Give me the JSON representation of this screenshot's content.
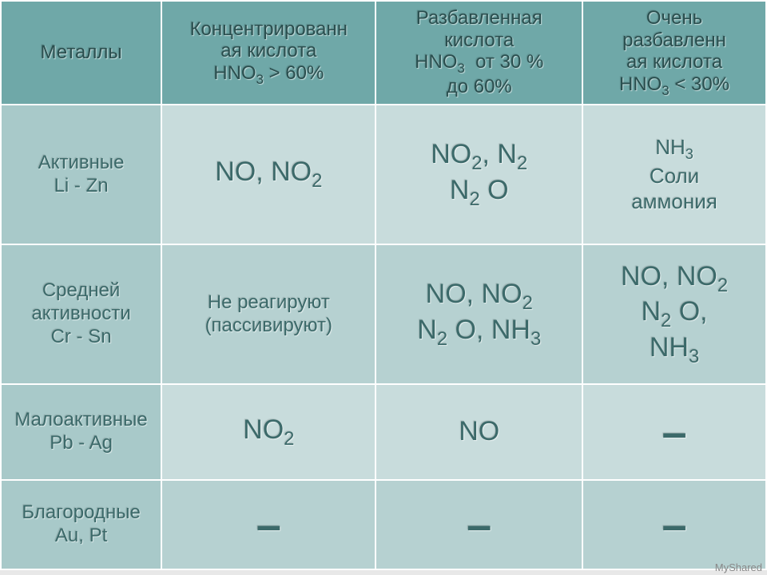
{
  "colors": {
    "header_bg": "#6fa8a8",
    "row_label_bg": "#a8c9c9",
    "cell_bg_light": "#c8dcdc",
    "cell_bg_mid": "#b6d1d1",
    "text": "#3c6a6a",
    "border": "#ffffff",
    "page_bg": "#e8e8e8"
  },
  "typography": {
    "font_family": "Trebuchet MS",
    "header_fontsize_pt": 18,
    "cell_big_fontsize_pt": 26,
    "cell_small_fontsize_pt": 18
  },
  "column_widths_pct": [
    21,
    28,
    27,
    24
  ],
  "headers": {
    "c0": "Металлы",
    "c1": "Концентрированная кислота\nHNO₃ > 60%",
    "c2": "Разбавленная кислота\nHNO₃  от 30 % до 60%",
    "c3": "Очень разбавленная кислота\nHNO₃ < 30%"
  },
  "rows": [
    {
      "label": "Активные\nLi - Zn",
      "c1": "NO, NO₂",
      "c2": "NO₂, N₂\nN₂ O",
      "c3": "NH₃\nСоли аммония"
    },
    {
      "label": "Средней активности\nCr - Sn",
      "c1": "Не реагируют (пассивируют)",
      "c2": "NO, NO₂\nN₂ O, NH₃",
      "c3": "NO, NO₂\nN₂ O, NH₃"
    },
    {
      "label": "Малоактивные\nPb - Ag",
      "c1": "NO₂",
      "c2": "NO",
      "c3": "–"
    },
    {
      "label": "Благородные\nAu, Pt",
      "c1": "–",
      "c2": "–",
      "c3": "–"
    }
  ],
  "watermark": "MyShared"
}
